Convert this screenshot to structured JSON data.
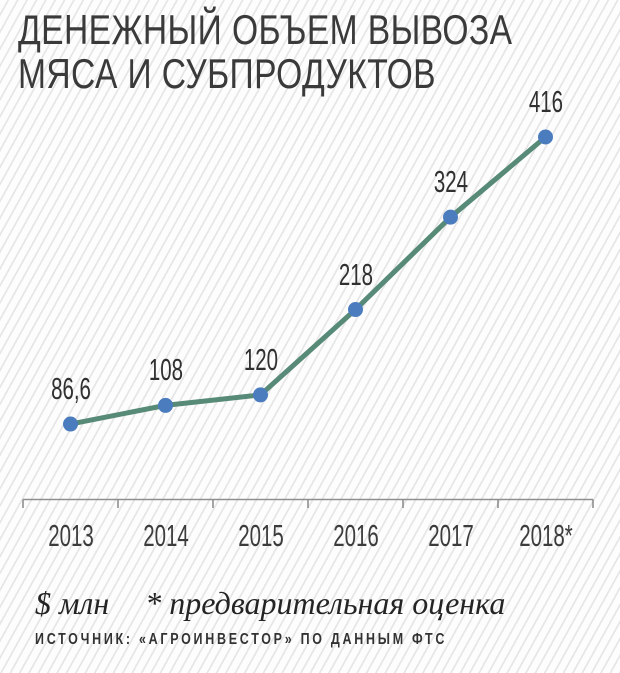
{
  "title": {
    "line1": "ДЕНЕЖНЫЙ ОБЪЕМ ВЫВОЗА",
    "line2": "МЯСА И СУБПРОДУКТОВ"
  },
  "chart_data": {
    "type": "line",
    "title": "ДЕНЕЖНЫЙ ОБЪЕМ ВЫВОЗА МЯСА И СУБПРОДУКТОВ",
    "categories": [
      "2013",
      "2014",
      "2015",
      "2016",
      "2017",
      "2018*"
    ],
    "values": [
      86.6,
      108,
      120,
      218,
      324,
      416
    ],
    "point_labels": [
      "86,6",
      "108",
      "120",
      "218",
      "324",
      "416"
    ],
    "xlabel": "",
    "ylabel": "$ млн",
    "ylim": [
      0,
      460
    ],
    "grid": false,
    "legend": false,
    "line_color": "#578a77",
    "point_color": "#4a7cbe",
    "axis_color": "#8f8f8f",
    "label_color": "#303030"
  },
  "footer": {
    "units": "$ млн",
    "note": "* предварительная оценка",
    "source": "ИСТОЧНИК: «АГРОИНВЕСТОР» ПО ДАННЫМ ФТС"
  }
}
